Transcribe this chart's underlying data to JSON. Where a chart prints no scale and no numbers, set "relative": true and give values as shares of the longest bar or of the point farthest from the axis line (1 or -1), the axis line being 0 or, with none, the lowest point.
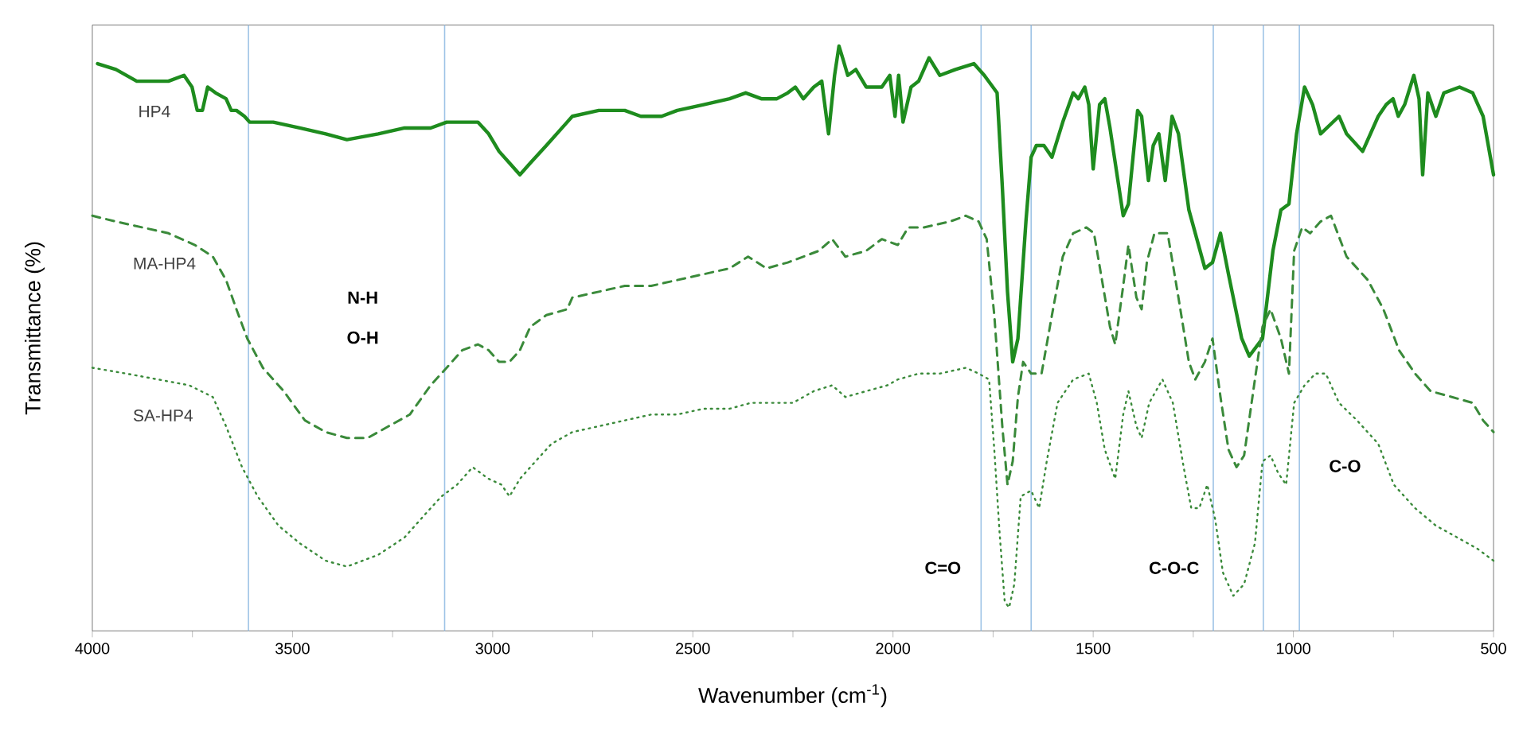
{
  "chart_data": {
    "type": "line",
    "relative": true,
    "xlabel": "Wavenumber (cm$^{-1}$)",
    "ylabel": "Transmittance (%)",
    "xlim": [
      4000,
      500
    ],
    "xticks": [
      4000,
      {
        "value": 3750,
        "label": null
      },
      3500,
      {
        "value": 3250,
        "label": null
      },
      3000,
      {
        "value": 2750,
        "label": null
      },
      2500,
      {
        "value": 2250,
        "label": null
      },
      2000,
      {
        "value": 1750,
        "label": null
      },
      1500,
      {
        "value": 1250,
        "label": null
      },
      1000,
      {
        "value": 750,
        "label": null
      },
      500
    ],
    "series": [
      {
        "name": "HP4",
        "color": "#1e8c1e",
        "line_style": "solid",
        "x": [
          3987,
          3941,
          3889,
          3849,
          3810,
          3771,
          3751,
          3738,
          3725,
          3712,
          3692,
          3666,
          3653,
          3640,
          3620,
          3607,
          3548,
          3482,
          3417,
          3364,
          3286,
          3220,
          3155,
          3115,
          3076,
          3037,
          3010,
          2984,
          2958,
          2932,
          2906,
          2866,
          2814,
          2801,
          2735,
          2670,
          2630,
          2578,
          2539,
          2473,
          2408,
          2368,
          2329,
          2290,
          2263,
          2244,
          2224,
          2198,
          2178,
          2161,
          2146,
          2135,
          2126,
          2113,
          2093,
          2067,
          2028,
          2008,
          1995,
          1986,
          1975,
          1955,
          1936,
          1910,
          1883,
          1844,
          1798,
          1772,
          1740,
          1727,
          1714,
          1701,
          1688,
          1668,
          1655,
          1642,
          1623,
          1603,
          1576,
          1550,
          1537,
          1521,
          1511,
          1500,
          1484,
          1471,
          1458,
          1425,
          1412,
          1389,
          1379,
          1362,
          1350,
          1336,
          1320,
          1303,
          1287,
          1261,
          1221,
          1202,
          1182,
          1162,
          1129,
          1110,
          1077,
          1051,
          1031,
          1011,
          992,
          972,
          952,
          932,
          886,
          867,
          827,
          788,
          768,
          751,
          738,
          722,
          699,
          686,
          677,
          664,
          644,
          624,
          585,
          552,
          526,
          500
        ],
        "values": [
          0.97,
          0.96,
          0.94,
          0.94,
          0.94,
          0.95,
          0.93,
          0.89,
          0.89,
          0.93,
          0.92,
          0.91,
          0.89,
          0.89,
          0.88,
          0.87,
          0.87,
          0.86,
          0.85,
          0.84,
          0.85,
          0.86,
          0.86,
          0.87,
          0.87,
          0.87,
          0.85,
          0.82,
          0.8,
          0.78,
          0.8,
          0.83,
          0.87,
          0.88,
          0.89,
          0.89,
          0.88,
          0.88,
          0.89,
          0.9,
          0.91,
          0.92,
          0.91,
          0.91,
          0.92,
          0.93,
          0.91,
          0.93,
          0.94,
          0.85,
          0.95,
          1.0,
          0.98,
          0.95,
          0.96,
          0.93,
          0.93,
          0.95,
          0.88,
          0.95,
          0.87,
          0.93,
          0.94,
          0.98,
          0.95,
          0.96,
          0.97,
          0.95,
          0.92,
          0.76,
          0.58,
          0.46,
          0.5,
          0.7,
          0.81,
          0.83,
          0.83,
          0.81,
          0.87,
          0.92,
          0.91,
          0.93,
          0.9,
          0.79,
          0.9,
          0.91,
          0.86,
          0.71,
          0.73,
          0.89,
          0.88,
          0.77,
          0.83,
          0.85,
          0.77,
          0.88,
          0.85,
          0.72,
          0.62,
          0.63,
          0.68,
          0.61,
          0.5,
          0.47,
          0.5,
          0.65,
          0.72,
          0.73,
          0.85,
          0.93,
          0.9,
          0.85,
          0.88,
          0.85,
          0.82,
          0.88,
          0.9,
          0.91,
          0.88,
          0.9,
          0.95,
          0.91,
          0.78,
          0.92,
          0.88,
          0.92,
          0.93,
          0.92,
          0.88,
          0.78
        ]
      },
      {
        "name": "MA-HP4",
        "color": "#3a8a3a",
        "line_style": "dashed",
        "x": [
          4000,
          3941,
          3875,
          3810,
          3744,
          3699,
          3666,
          3640,
          3613,
          3574,
          3522,
          3469,
          3417,
          3364,
          3312,
          3260,
          3207,
          3155,
          3115,
          3076,
          3037,
          3010,
          2984,
          2958,
          2932,
          2906,
          2866,
          2814,
          2801,
          2735,
          2670,
          2604,
          2539,
          2473,
          2408,
          2362,
          2316,
          2263,
          2224,
          2185,
          2152,
          2119,
          2067,
          2028,
          1988,
          1962,
          1923,
          1858,
          1818,
          1786,
          1766,
          1747,
          1727,
          1714,
          1701,
          1688,
          1675,
          1655,
          1629,
          1603,
          1576,
          1550,
          1517,
          1498,
          1478,
          1458,
          1445,
          1425,
          1412,
          1392,
          1379,
          1366,
          1347,
          1314,
          1287,
          1261,
          1245,
          1221,
          1202,
          1182,
          1162,
          1142,
          1123,
          1096,
          1077,
          1057,
          1031,
          1011,
          998,
          978,
          958,
          932,
          906,
          867,
          814,
          775,
          736,
          696,
          657,
          604,
          552,
          526,
          500
        ],
        "values": [
          0.71,
          0.7,
          0.69,
          0.68,
          0.66,
          0.64,
          0.6,
          0.55,
          0.5,
          0.45,
          0.41,
          0.36,
          0.34,
          0.33,
          0.33,
          0.35,
          0.37,
          0.42,
          0.45,
          0.48,
          0.49,
          0.48,
          0.46,
          0.46,
          0.48,
          0.52,
          0.54,
          0.55,
          0.57,
          0.58,
          0.59,
          0.59,
          0.6,
          0.61,
          0.62,
          0.64,
          0.62,
          0.63,
          0.64,
          0.65,
          0.67,
          0.64,
          0.65,
          0.67,
          0.66,
          0.69,
          0.69,
          0.7,
          0.71,
          0.7,
          0.67,
          0.54,
          0.35,
          0.25,
          0.29,
          0.4,
          0.46,
          0.44,
          0.44,
          0.54,
          0.64,
          0.68,
          0.69,
          0.68,
          0.6,
          0.52,
          0.49,
          0.59,
          0.66,
          0.57,
          0.55,
          0.63,
          0.68,
          0.68,
          0.57,
          0.46,
          0.43,
          0.46,
          0.5,
          0.4,
          0.31,
          0.28,
          0.3,
          0.43,
          0.52,
          0.55,
          0.5,
          0.44,
          0.65,
          0.69,
          0.68,
          0.7,
          0.71,
          0.64,
          0.6,
          0.55,
          0.48,
          0.44,
          0.41,
          0.4,
          0.39,
          0.36,
          0.34
        ]
      },
      {
        "name": "SA-HP4",
        "color": "#3a8a3a",
        "line_style": "dotted",
        "x": [
          4000,
          3915,
          3836,
          3758,
          3699,
          3666,
          3626,
          3587,
          3535,
          3482,
          3417,
          3364,
          3286,
          3220,
          3168,
          3128,
          3089,
          3050,
          3010,
          2978,
          2958,
          2932,
          2893,
          2853,
          2801,
          2735,
          2670,
          2604,
          2539,
          2473,
          2408,
          2355,
          2303,
          2250,
          2198,
          2152,
          2119,
          2067,
          2014,
          1988,
          1936,
          1883,
          1818,
          1786,
          1760,
          1747,
          1734,
          1721,
          1710,
          1697,
          1681,
          1655,
          1635,
          1616,
          1589,
          1550,
          1511,
          1491,
          1471,
          1445,
          1425,
          1412,
          1392,
          1379,
          1360,
          1327,
          1301,
          1274,
          1255,
          1235,
          1215,
          1195,
          1176,
          1150,
          1123,
          1096,
          1077,
          1057,
          1038,
          1018,
          998,
          972,
          945,
          919,
          886,
          841,
          788,
          749,
          696,
          644,
          591,
          539,
          500
        ],
        "values": [
          0.45,
          0.44,
          0.43,
          0.42,
          0.4,
          0.35,
          0.28,
          0.23,
          0.18,
          0.15,
          0.12,
          0.11,
          0.13,
          0.16,
          0.2,
          0.23,
          0.25,
          0.28,
          0.26,
          0.25,
          0.23,
          0.26,
          0.29,
          0.32,
          0.34,
          0.35,
          0.36,
          0.37,
          0.37,
          0.38,
          0.38,
          0.39,
          0.39,
          0.39,
          0.41,
          0.42,
          0.4,
          0.41,
          0.42,
          0.43,
          0.44,
          0.44,
          0.45,
          0.44,
          0.43,
          0.31,
          0.17,
          0.05,
          0.04,
          0.08,
          0.23,
          0.24,
          0.21,
          0.29,
          0.39,
          0.43,
          0.44,
          0.39,
          0.31,
          0.26,
          0.37,
          0.41,
          0.35,
          0.33,
          0.39,
          0.43,
          0.39,
          0.28,
          0.21,
          0.21,
          0.25,
          0.19,
          0.1,
          0.06,
          0.08,
          0.15,
          0.29,
          0.3,
          0.27,
          0.25,
          0.39,
          0.42,
          0.44,
          0.44,
          0.39,
          0.36,
          0.32,
          0.25,
          0.21,
          0.18,
          0.16,
          0.14,
          0.12
        ]
      }
    ],
    "ref_lines": [
      {
        "axis": "x",
        "value": 3610,
        "color": "#9dc3e6"
      },
      {
        "axis": "x",
        "value": 3120,
        "color": "#9dc3e6"
      },
      {
        "axis": "x",
        "value": 1780,
        "color": "#9dc3e6"
      },
      {
        "axis": "x",
        "value": 1655,
        "color": "#9dc3e6"
      },
      {
        "axis": "x",
        "value": 1200,
        "color": "#9dc3e6"
      },
      {
        "axis": "x",
        "value": 1075,
        "color": "#9dc3e6"
      },
      {
        "axis": "x",
        "value": 985,
        "color": "#9dc3e6"
      }
    ],
    "annotations": [
      "N-H",
      "O-H",
      "C=O",
      "C-O-C",
      "C-O"
    ]
  }
}
